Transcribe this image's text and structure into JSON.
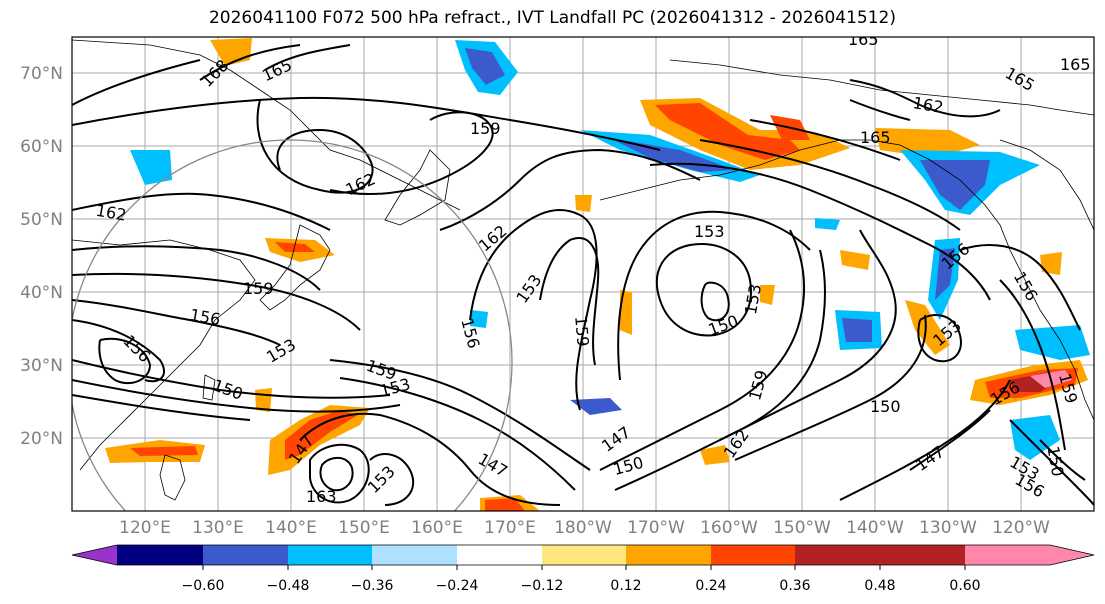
{
  "title": "2026041100 F072 500 hPa refract., IVT Landfall PC (2026041312 - 2026041512)",
  "lat_labels": [
    "70°N",
    "60°N",
    "50°N",
    "40°N",
    "30°N",
    "20°N"
  ],
  "lon_labels": [
    "120°E",
    "130°E",
    "140°E",
    "150°E",
    "160°E",
    "170°E",
    "180°W",
    "170°W",
    "160°W",
    "150°W",
    "140°W",
    "130°W",
    "120°W"
  ],
  "colorbar": {
    "tick_labels": [
      "−0.60",
      "−0.48",
      "−0.36",
      "−0.24",
      "−0.12",
      "0.12",
      "0.24",
      "0.36",
      "0.48",
      "0.60"
    ],
    "colors": [
      "#9933cc",
      "#000080",
      "#3b5bcc",
      "#00bfff",
      "#b0e0ff",
      "#ffffff",
      "#ffe680",
      "#ffa500",
      "#ff4500",
      "#b22222",
      "#ff88aa"
    ]
  },
  "contour_labels": [
    "165",
    "168",
    "165",
    "162",
    "159",
    "165",
    "165",
    "162",
    "162",
    "162",
    "153",
    "159",
    "153",
    "156",
    "159",
    "153",
    "156",
    "156",
    "150",
    "159",
    "153",
    "150",
    "147",
    "163",
    "153",
    "159",
    "147",
    "150",
    "162",
    "147",
    "150",
    "153",
    "153",
    "156",
    "156",
    "159",
    "165",
    "147",
    "150",
    "153",
    "156",
    "156"
  ],
  "colors": {
    "contour": "#000000",
    "grid": "#aaaaaa",
    "axis_label": "#808080",
    "circle": "#888888"
  }
}
